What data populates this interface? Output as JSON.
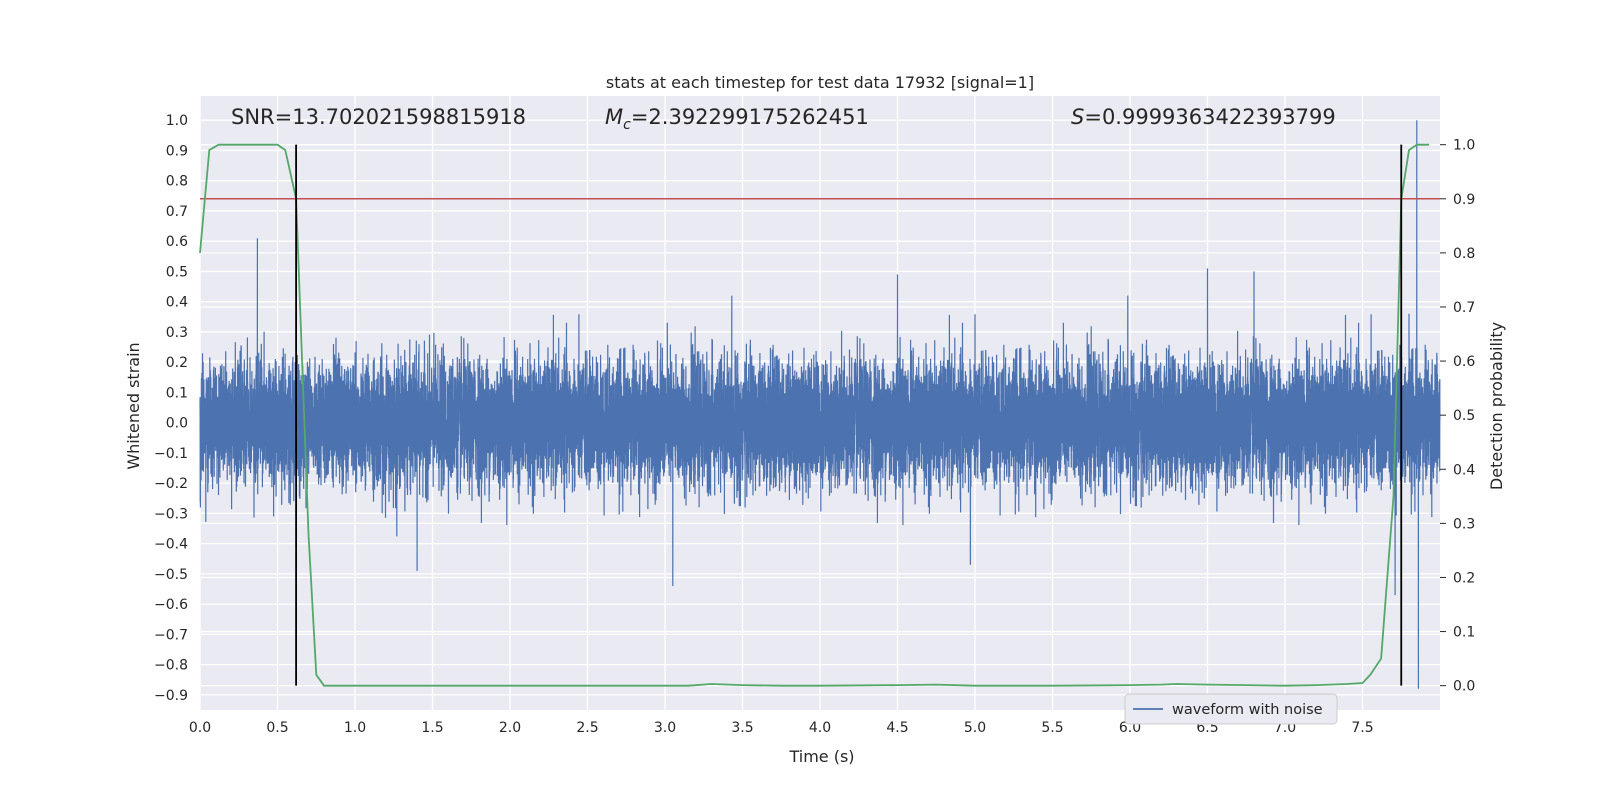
{
  "chart_data": {
    "type": "line",
    "title": "stats at each timestep for test data 17932 [signal=1]",
    "xlabel": "Time (s)",
    "ylabel_left": "Whitened strain",
    "ylabel_right": "Detection probability",
    "xlim": [
      0.0,
      8.0
    ],
    "ylim_left": [
      -0.95,
      1.08
    ],
    "ylim_right": [
      -0.045,
      1.09
    ],
    "x_ticks": [
      0.0,
      0.5,
      1.0,
      1.5,
      2.0,
      2.5,
      3.0,
      3.5,
      4.0,
      4.5,
      5.0,
      5.5,
      6.0,
      6.5,
      7.0,
      7.5
    ],
    "x_tick_labels": [
      "0.0",
      "0.5",
      "1.0",
      "1.5",
      "2.0",
      "2.5",
      "3.0",
      "3.5",
      "4.0",
      "4.5",
      "5.0",
      "5.5",
      "6.0",
      "6.5",
      "7.0",
      "7.5"
    ],
    "left_ticks": [
      1.0,
      0.9,
      0.8,
      0.7,
      0.6,
      0.5,
      0.4,
      0.3,
      0.2,
      0.1,
      0.0,
      -0.1,
      -0.2,
      -0.3,
      -0.4,
      -0.5,
      -0.6,
      -0.7,
      -0.8,
      -0.9
    ],
    "left_tick_labels": [
      "1.0",
      "0.9",
      "0.8",
      "0.7",
      "0.6",
      "0.5",
      "0.4",
      "0.3",
      "0.2",
      "0.1",
      "0.0",
      "−0.1",
      "−0.2",
      "−0.3",
      "−0.4",
      "−0.5",
      "−0.6",
      "−0.7",
      "−0.8",
      "−0.9"
    ],
    "right_ticks": [
      1.0,
      0.9,
      0.8,
      0.7,
      0.6,
      0.5,
      0.4,
      0.3,
      0.2,
      0.1,
      0.0
    ],
    "right_tick_labels": [
      "1.0",
      "0.9",
      "0.8",
      "0.7",
      "0.6",
      "0.5",
      "0.4",
      "0.3",
      "0.2",
      "0.1",
      "0.0"
    ],
    "grid": true,
    "legend": {
      "position": "lower right",
      "entries": [
        {
          "label": "waveform with noise",
          "color": "#4c72b0"
        }
      ]
    },
    "annotations": [
      {
        "text": "SNR=13.702021598815918"
      },
      {
        "prefix": "M",
        "subscript": "c",
        "text": "=2.392299175262451"
      },
      {
        "prefix": "S",
        "text": "=0.9999363422393799"
      }
    ],
    "series": [
      {
        "name": "waveform with noise",
        "axis": "left",
        "color": "#4c72b0",
        "sample_rate_hz": 2048,
        "typical_amplitude": 0.1,
        "peaks": [
          {
            "x": 0.37,
            "y": 0.61
          },
          {
            "x": 1.4,
            "y": -0.49
          },
          {
            "x": 3.05,
            "y": -0.54
          },
          {
            "x": 4.5,
            "y": 0.49
          },
          {
            "x": 4.97,
            "y": -0.47
          },
          {
            "x": 6.5,
            "y": 0.51
          },
          {
            "x": 6.8,
            "y": 0.5
          },
          {
            "x": 7.71,
            "y": -0.57
          },
          {
            "x": 7.8,
            "y": 0.36
          },
          {
            "x": 7.85,
            "y": 1.0
          },
          {
            "x": 7.86,
            "y": -0.88
          }
        ]
      },
      {
        "axis": "right",
        "color": "#55a868",
        "x": [
          0.0,
          0.06,
          0.12,
          0.2,
          0.3,
          0.4,
          0.5,
          0.55,
          0.62,
          0.7,
          0.75,
          0.8,
          0.87,
          1.0,
          1.5,
          2.0,
          2.5,
          3.0,
          3.15,
          3.3,
          3.5,
          3.75,
          4.0,
          4.5,
          4.75,
          5.0,
          5.5,
          6.0,
          6.2,
          6.3,
          6.5,
          6.75,
          7.0,
          7.2,
          7.4,
          7.5,
          7.55,
          7.62,
          7.7,
          7.75,
          7.8,
          7.85,
          7.93
        ],
        "y": [
          0.8,
          0.99,
          1.0,
          1.0,
          1.0,
          1.0,
          1.0,
          0.99,
          0.9,
          0.28,
          0.02,
          0.0,
          0.0,
          0.0,
          0.0,
          0.0,
          0.0,
          0.0,
          0.0,
          0.003,
          0.001,
          0.0,
          0.0,
          0.001,
          0.002,
          0.0,
          0.0,
          0.001,
          0.002,
          0.003,
          0.002,
          0.001,
          0.0,
          0.001,
          0.003,
          0.005,
          0.02,
          0.05,
          0.35,
          0.9,
          0.99,
          1.0,
          1.0
        ]
      }
    ],
    "threshold": {
      "axis": "right",
      "y": 0.9,
      "color": "#c44e52"
    },
    "vlines": [
      {
        "x": 0.62,
        "y0": 0.0,
        "y1": 1.0,
        "color": "#000000"
      },
      {
        "x": 7.75,
        "y0": 0.0,
        "y1": 1.0,
        "color": "#000000"
      }
    ]
  }
}
